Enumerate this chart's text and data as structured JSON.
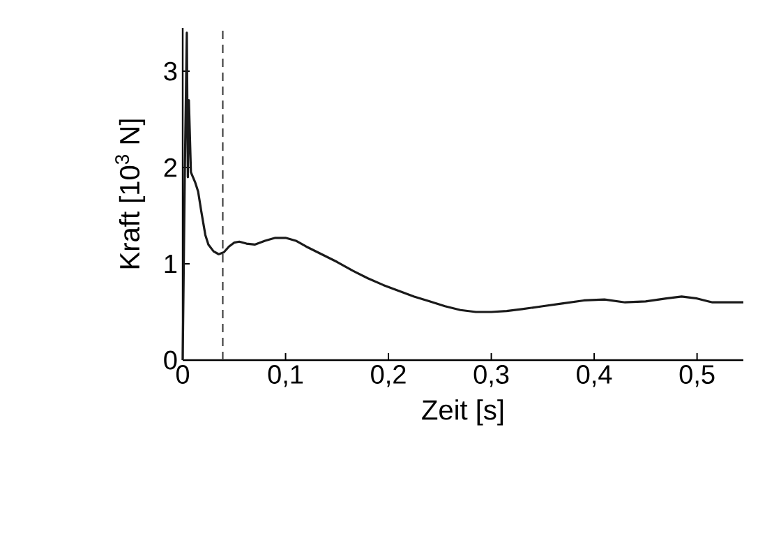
{
  "chart_data": {
    "type": "line",
    "xlabel": "Zeit [s]",
    "ylabel": "Kraft [10$^{3}$ N]",
    "xlim": [
      0,
      0.545
    ],
    "ylim": [
      0,
      3.45
    ],
    "xticks": [
      0,
      {
        "value": 0.1,
        "label": "0,1"
      },
      {
        "value": 0.2,
        "label": "0,2"
      },
      {
        "value": 0.3,
        "label": "0,3"
      },
      {
        "value": 0.4,
        "label": "0,4"
      },
      {
        "value": 0.5,
        "label": "0,5"
      }
    ],
    "yticks": [
      0,
      1,
      2,
      3
    ],
    "grid": false,
    "marker": "none",
    "line_style": "solid",
    "ref_lines": [
      {
        "axis": "x",
        "value": 0.039,
        "line_style": "dashed",
        "color": "#333333"
      }
    ],
    "series": [
      {
        "color": "#1a1a1a",
        "x": [
          0,
          0.002,
          0.004,
          0.005,
          0.006,
          0.008,
          0.01,
          0.012,
          0.015,
          0.018,
          0.022,
          0.025,
          0.03,
          0.035,
          0.04,
          0.045,
          0.05,
          0.055,
          0.062,
          0.07,
          0.08,
          0.09,
          0.1,
          0.11,
          0.12,
          0.135,
          0.15,
          0.165,
          0.18,
          0.195,
          0.21,
          0.225,
          0.24,
          0.255,
          0.27,
          0.285,
          0.3,
          0.315,
          0.33,
          0.35,
          0.37,
          0.39,
          0.41,
          0.43,
          0.45,
          0.47,
          0.485,
          0.5,
          0.515,
          0.53,
          0.545
        ],
        "values": [
          0,
          1.9,
          3.4,
          1.9,
          2.7,
          1.95,
          1.9,
          1.85,
          1.75,
          1.55,
          1.3,
          1.2,
          1.13,
          1.1,
          1.12,
          1.18,
          1.22,
          1.23,
          1.21,
          1.2,
          1.24,
          1.27,
          1.27,
          1.24,
          1.18,
          1.1,
          1.02,
          0.93,
          0.85,
          0.78,
          0.72,
          0.66,
          0.61,
          0.56,
          0.52,
          0.5,
          0.5,
          0.51,
          0.53,
          0.56,
          0.59,
          0.62,
          0.63,
          0.6,
          0.61,
          0.64,
          0.66,
          0.64,
          0.6,
          0.6,
          0.6
        ]
      }
    ]
  }
}
